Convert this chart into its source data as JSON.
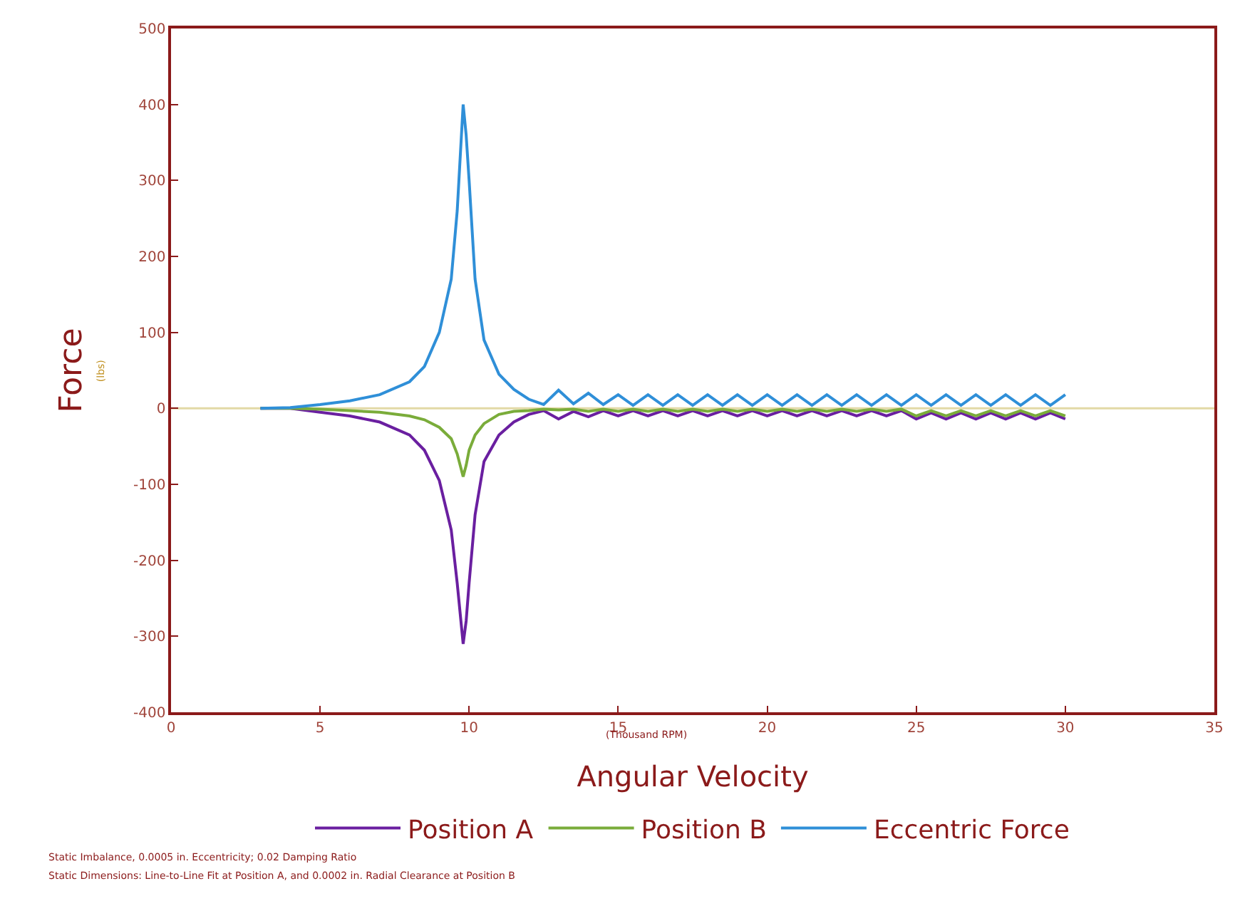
{
  "chart_data": {
    "type": "line",
    "xlabel": "Angular Velocity",
    "ylabel": "Force",
    "xlim": [
      0,
      35
    ],
    "xticks": [
      0,
      5,
      10,
      15,
      20,
      25,
      30,
      35
    ],
    "ylim": [
      -400,
      500
    ],
    "yticks": [
      -400,
      -300,
      -200,
      -100,
      0,
      100,
      200,
      300,
      400,
      500
    ],
    "legend": "bottom",
    "line_style": "solid",
    "ref_lines": [
      {
        "axis": "y",
        "value": 0,
        "color": "#e2d9a6"
      }
    ],
    "annotations": [
      "(lbs)",
      "(Thousand RPM)",
      "Static Imbalance, 0.0005 in. Eccentricity; 0.02 Damping Ratio",
      "Static Dimensions: Line-to-Line Fit at Position A, and 0.0002 in. Radial Clearance at Position B"
    ],
    "x": [
      3,
      4,
      5,
      6,
      7,
      8,
      8.5,
      9,
      9.4,
      9.6,
      9.8,
      9.9,
      10.0,
      10.2,
      10.5,
      11,
      11.5,
      12,
      12.5,
      13,
      13.5,
      14,
      14.5,
      15,
      15.5,
      16,
      16.5,
      17,
      17.5,
      18,
      18.5,
      19,
      19.5,
      20,
      20.5,
      21,
      21.5,
      22,
      22.5,
      23,
      23.5,
      24,
      24.5,
      25,
      25.5,
      26,
      26.5,
      27,
      27.5,
      28,
      28.5,
      29,
      29.5,
      30
    ],
    "series": [
      {
        "name": "Position A",
        "color": "#6a1fa0",
        "values": [
          0,
          0,
          -5,
          -10,
          -18,
          -35,
          -55,
          -95,
          -160,
          -230,
          -310,
          -280,
          -230,
          -140,
          -70,
          -35,
          -18,
          -8,
          -3,
          -14,
          -4,
          -11,
          -3,
          -10,
          -3,
          -10,
          -3,
          -10,
          -3,
          -10,
          -3,
          -10,
          -3,
          -10,
          -3,
          -10,
          -3,
          -10,
          -3,
          -10,
          -3,
          -10,
          -3,
          -14,
          -6,
          -14,
          -6,
          -14,
          -6,
          -14,
          -6,
          -14,
          -6,
          -14
        ]
      },
      {
        "name": "Position B",
        "color": "#7aac3a",
        "values": [
          0,
          0,
          -1,
          -3,
          -5,
          -10,
          -15,
          -25,
          -40,
          -60,
          -90,
          -75,
          -55,
          -35,
          -20,
          -8,
          -4,
          -3,
          -1,
          -2,
          -1,
          -4,
          -1,
          -4,
          -1,
          -4,
          -1,
          -4,
          -1,
          -4,
          -1,
          -4,
          -1,
          -4,
          -1,
          -4,
          -1,
          -4,
          -1,
          -4,
          -1,
          -4,
          -1,
          -10,
          -3,
          -10,
          -3,
          -10,
          -3,
          -10,
          -3,
          -10,
          -3,
          -10
        ]
      },
      {
        "name": "Eccentric Force",
        "color": "#2f8fd8",
        "values": [
          0,
          1,
          5,
          10,
          18,
          35,
          55,
          100,
          170,
          260,
          400,
          360,
          300,
          170,
          90,
          45,
          25,
          12,
          5,
          24,
          6,
          20,
          5,
          18,
          4,
          18,
          4,
          18,
          4,
          18,
          4,
          18,
          4,
          18,
          4,
          18,
          4,
          18,
          4,
          18,
          4,
          18,
          4,
          18,
          4,
          18,
          4,
          18,
          4,
          18,
          4,
          18,
          4,
          18
        ]
      }
    ]
  }
}
